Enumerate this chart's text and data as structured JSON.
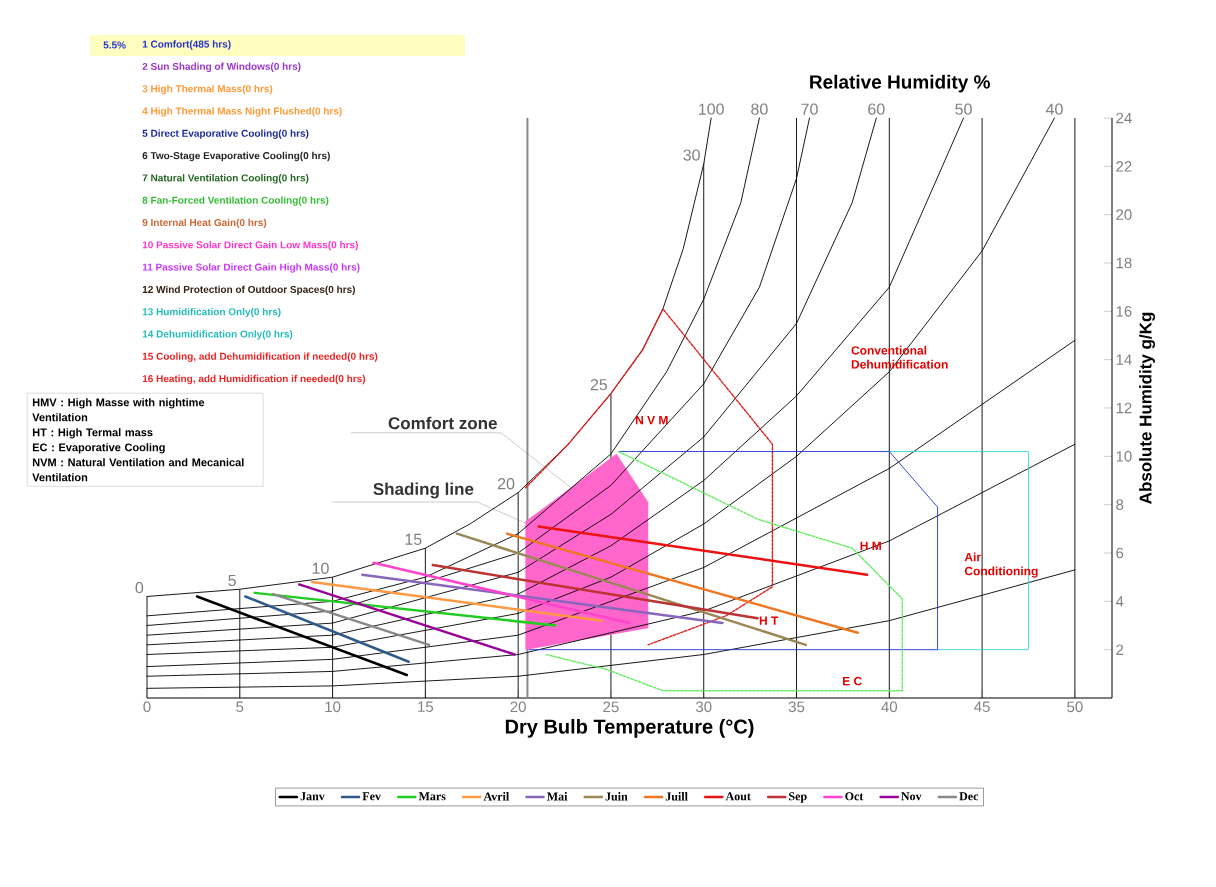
{
  "chart_data": {
    "type": "line",
    "title": "Relative Humidity %",
    "xlabel": "Dry Bulb Temperature (°C)",
    "ylabel": "Absolute Humidity g/Kg",
    "xlim": [
      0,
      52
    ],
    "ylim": [
      0,
      24
    ],
    "xticks": [
      0,
      5,
      10,
      15,
      20,
      25,
      30,
      35,
      40,
      45,
      50
    ],
    "yticks": [
      2,
      4,
      6,
      8,
      10,
      12,
      14,
      16,
      18,
      20,
      22,
      24
    ],
    "grid": "x",
    "legend": "bottom",
    "ref_lines": [
      {
        "axis": "x",
        "value": 20.5,
        "label": "Shading line",
        "color": "#888888"
      }
    ],
    "series": [
      {
        "type": "area",
        "name": "Comfort zone",
        "color": "#ff66cc",
        "x": [
          20.4,
          25.3,
          27.0,
          27.0,
          20.4
        ],
        "values": [
          7.3,
          10.1,
          8.1,
          2.9,
          2.0
        ]
      },
      {
        "color": "#000000",
        "x": [
          0,
          5,
          10,
          15,
          17.4,
          20,
          22.7,
          25,
          26.7,
          27.8,
          28.9,
          30,
          30.4
        ],
        "values": [
          4.2,
          4.5,
          5.0,
          6.2,
          7.2,
          8.5,
          10.5,
          12.6,
          14.4,
          16.1,
          18.6,
          22.1,
          24
        ]
      },
      {
        "color": "#000000",
        "x": [
          0,
          10,
          15,
          20,
          25,
          28,
          30,
          32,
          33
        ],
        "values": [
          3.4,
          4.0,
          5.0,
          6.8,
          10.1,
          13.5,
          16.5,
          20.5,
          24
        ]
      },
      {
        "color": "#000000",
        "x": [
          0,
          10,
          20,
          25,
          30,
          33,
          35,
          35.7
        ],
        "values": [
          3.0,
          3.6,
          6.0,
          8.8,
          13.0,
          17.0,
          21.5,
          24
        ]
      },
      {
        "color": "#000000",
        "x": [
          0,
          10,
          20,
          25,
          30,
          35,
          38,
          39.3
        ],
        "values": [
          2.6,
          3.1,
          5.2,
          7.6,
          10.8,
          15.5,
          20.5,
          24
        ]
      },
      {
        "color": "#000000",
        "x": [
          0,
          10,
          20,
          25,
          30,
          35,
          40,
          44
        ],
        "values": [
          2.2,
          2.6,
          4.3,
          6.3,
          9.0,
          12.5,
          17.0,
          24
        ]
      },
      {
        "color": "#000000",
        "x": [
          0,
          10,
          20,
          25,
          30,
          35,
          40,
          45,
          48.9
        ],
        "values": [
          1.8,
          2.1,
          3.5,
          5.0,
          7.2,
          10.0,
          13.5,
          18.5,
          24
        ]
      },
      {
        "color": "#000000",
        "x": [
          0,
          10,
          20,
          30,
          40,
          50
        ],
        "values": [
          1.3,
          1.6,
          2.6,
          5.4,
          9.5,
          14.8
        ]
      },
      {
        "color": "#000000",
        "x": [
          0,
          10,
          20,
          30,
          40,
          50
        ],
        "values": [
          0.9,
          1.1,
          1.8,
          3.6,
          6.5,
          10.5
        ]
      },
      {
        "color": "#000000",
        "x": [
          0,
          10,
          20,
          30,
          40,
          50
        ],
        "values": [
          0.4,
          0.5,
          0.9,
          1.8,
          3.2,
          5.3
        ]
      },
      {
        "color": "#dd2222",
        "line_style": "dashed",
        "x": [
          20.4,
          22.7,
          25,
          26.7,
          27.8,
          33.7,
          33.7,
          31.2,
          27.0
        ],
        "values": [
          8.7,
          10.5,
          12.6,
          14.4,
          16.1,
          10.5,
          4.6,
          3.4,
          2.2
        ]
      },
      {
        "color": "#33dddd",
        "x": [
          40.0,
          47.5,
          47.5,
          42.6
        ],
        "values": [
          10.2,
          10.2,
          2.0,
          2.0
        ]
      },
      {
        "color": "#2233dd",
        "x": [
          25.4,
          40.0,
          42.6,
          42.6,
          20.6
        ],
        "values": [
          10.2,
          10.2,
          7.9,
          2.0,
          2.0
        ]
      },
      {
        "color": "#66ee66",
        "line_style": "dashed",
        "x": [
          25.4,
          32.9,
          38.0,
          40.7,
          40.7,
          27.8,
          24.7,
          21.5
        ],
        "values": [
          10.2,
          7.4,
          6.2,
          4.1,
          0.3,
          0.3,
          1.2,
          1.8
        ]
      },
      {
        "name": "Janv",
        "color": "#000000",
        "x": [
          2.7,
          14.0
        ],
        "values": [
          4.2,
          0.95
        ]
      },
      {
        "name": "Fev",
        "color": "#2f5a8a",
        "x": [
          5.3,
          14.1
        ],
        "values": [
          4.2,
          1.5
        ]
      },
      {
        "name": "Mars",
        "color": "#22cc22",
        "x": [
          5.8,
          22.0
        ],
        "values": [
          4.35,
          3.0
        ]
      },
      {
        "name": "Avril",
        "color": "#ff9944",
        "x": [
          8.9,
          24.5
        ],
        "values": [
          4.8,
          3.2
        ]
      },
      {
        "name": "Mai",
        "color": "#8866bb",
        "x": [
          11.6,
          31.0
        ],
        "values": [
          5.1,
          3.1
        ]
      },
      {
        "name": "Juin",
        "color": "#998855",
        "x": [
          16.7,
          35.5
        ],
        "values": [
          6.8,
          2.2
        ]
      },
      {
        "name": "Juill",
        "color": "#ee7722",
        "x": [
          19.4,
          38.3
        ],
        "values": [
          6.8,
          2.7
        ]
      },
      {
        "name": "Aout",
        "color": "#ee1111",
        "x": [
          21.1,
          38.8
        ],
        "values": [
          7.1,
          5.1
        ]
      },
      {
        "name": "Sep",
        "color": "#bb3333",
        "x": [
          15.4,
          32.9
        ],
        "values": [
          5.5,
          3.3
        ]
      },
      {
        "name": "Oct",
        "color": "#ff44cc",
        "x": [
          12.2,
          26.0
        ],
        "values": [
          5.6,
          3.1
        ]
      },
      {
        "name": "Nov",
        "color": "#990099",
        "x": [
          8.2,
          19.8
        ],
        "values": [
          4.7,
          1.8
        ]
      },
      {
        "name": "Dec",
        "color": "#888888",
        "x": [
          6.8,
          15.2
        ],
        "values": [
          4.3,
          2.2
        ]
      }
    ],
    "annotations": [
      "5.5%",
      "1 Comfort(485 hrs)",
      "2 Sun Shading of Windows(0 hrs)",
      "3 High Thermal Mass(0 hrs)",
      "4 High Thermal Mass Night Flushed(0 hrs)",
      "5 Direct Evaporative Cooling(0 hrs)",
      "6 Two-Stage Evaporative Cooling(0 hrs)",
      "7 Natural Ventilation Cooling(0 hrs)",
      "8 Fan-Forced Ventilation Cooling(0 hrs)",
      "9 Internal Heat Gain(0 hrs)",
      "10 Passive Solar Direct Gain Low Mass(0 hrs)",
      "11 Passive Solar Direct Gain High Mass(0 hrs)",
      "12 Wind Protection of Outdoor Spaces(0 hrs)",
      "13 Humidification Only(0 hrs)",
      "14 Dehumidification Only(0 hrs)",
      "15 Cooling, add Dehumidification if needed(0 hrs)",
      "16 Heating, add Humidification if needed(0 hrs)",
      "**HMV** : High Masse with nightime Ventilation",
      "**HT** : High Termal mass",
      "**EC** : Evaporative Cooling",
      "**NVM** : Natural Ventilation and Mecanical Ventilation",
      "N V M",
      "H M",
      "H T",
      "E C",
      "Conventional Dehumidification",
      "Air Conditioning",
      {
        "text": "0",
        "x": 0,
        "y": 4.2
      },
      {
        "text": "5",
        "x": 5,
        "y": 4.5
      },
      {
        "text": "10",
        "x": 10,
        "y": 5.0
      },
      {
        "text": "15",
        "x": 15,
        "y": 6.2
      },
      {
        "text": "20",
        "x": 20,
        "y": 8.5
      },
      {
        "text": "25",
        "x": 25,
        "y": 12.6
      },
      {
        "text": "30",
        "x": 30,
        "y": 22.1
      },
      {
        "text": "100",
        "x": 30.4,
        "y": 24
      },
      {
        "text": "80",
        "x": 33,
        "y": 24
      },
      {
        "text": "70",
        "x": 35.7,
        "y": 24
      },
      {
        "text": "60",
        "x": 39.3,
        "y": 24
      },
      {
        "text": "50",
        "x": 44,
        "y": 24
      },
      {
        "text": "40",
        "x": 48.9,
        "y": 24
      }
    ]
  }
}
